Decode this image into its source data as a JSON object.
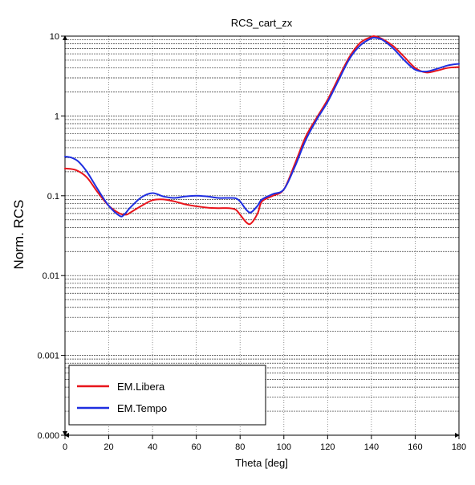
{
  "chart_data": {
    "type": "line",
    "title": "RCS_cart_zx",
    "xlabel": "Theta [deg]",
    "ylabel": "Norm. RCS",
    "xlim": [
      0,
      180
    ],
    "ylim": [
      0.0001,
      10
    ],
    "yscale": "log",
    "x_ticks": [
      0,
      20,
      40,
      60,
      80,
      100,
      120,
      140,
      160,
      180
    ],
    "x_tick_labels": [
      "0",
      "20",
      "40",
      "60",
      "80",
      "100",
      "120",
      "140",
      "160",
      "180"
    ],
    "y_ticks": [
      0.0001,
      0.001,
      0.01,
      0.1,
      1,
      10
    ],
    "y_tick_labels": [
      "0.000",
      "0.001",
      "0.01",
      "0.1",
      "1",
      "10"
    ],
    "grid": true,
    "legend_position": "bottom-left",
    "series": [
      {
        "name": "EM.Libera",
        "color": "#e8141b",
        "x": [
          0,
          5,
          10,
          15,
          20,
          25,
          28,
          30,
          35,
          40,
          45,
          50,
          55,
          60,
          65,
          70,
          75,
          78,
          80,
          83,
          85,
          88,
          90,
          95,
          100,
          105,
          110,
          115,
          120,
          125,
          130,
          135,
          140,
          142,
          145,
          150,
          155,
          160,
          165,
          170,
          175,
          180
        ],
        "y": [
          0.22,
          0.21,
          0.17,
          0.11,
          0.075,
          0.06,
          0.058,
          0.062,
          0.075,
          0.088,
          0.09,
          0.085,
          0.078,
          0.074,
          0.071,
          0.07,
          0.07,
          0.067,
          0.058,
          0.046,
          0.045,
          0.06,
          0.085,
          0.1,
          0.12,
          0.25,
          0.55,
          0.95,
          1.6,
          3.0,
          5.5,
          8.3,
          9.8,
          9.9,
          9.2,
          7.5,
          5.5,
          4.0,
          3.5,
          3.7,
          4.0,
          4.1
        ]
      },
      {
        "name": "EM.Tempo",
        "color": "#1f2fe0",
        "x": [
          0,
          3,
          6,
          10,
          15,
          20,
          25,
          27,
          30,
          35,
          40,
          45,
          50,
          55,
          60,
          65,
          70,
          75,
          78,
          80,
          83,
          85,
          88,
          90,
          95,
          100,
          105,
          110,
          115,
          120,
          125,
          130,
          135,
          140,
          142,
          145,
          150,
          155,
          160,
          165,
          170,
          175,
          180
        ],
        "y": [
          0.31,
          0.3,
          0.27,
          0.2,
          0.12,
          0.075,
          0.056,
          0.058,
          0.072,
          0.096,
          0.108,
          0.098,
          0.094,
          0.098,
          0.1,
          0.098,
          0.094,
          0.094,
          0.093,
          0.085,
          0.066,
          0.062,
          0.075,
          0.09,
          0.105,
          0.12,
          0.23,
          0.5,
          0.9,
          1.5,
          2.8,
          5.2,
          7.7,
          9.4,
          9.5,
          9.0,
          7.0,
          5.0,
          3.8,
          3.6,
          3.9,
          4.3,
          4.5
        ]
      }
    ]
  }
}
